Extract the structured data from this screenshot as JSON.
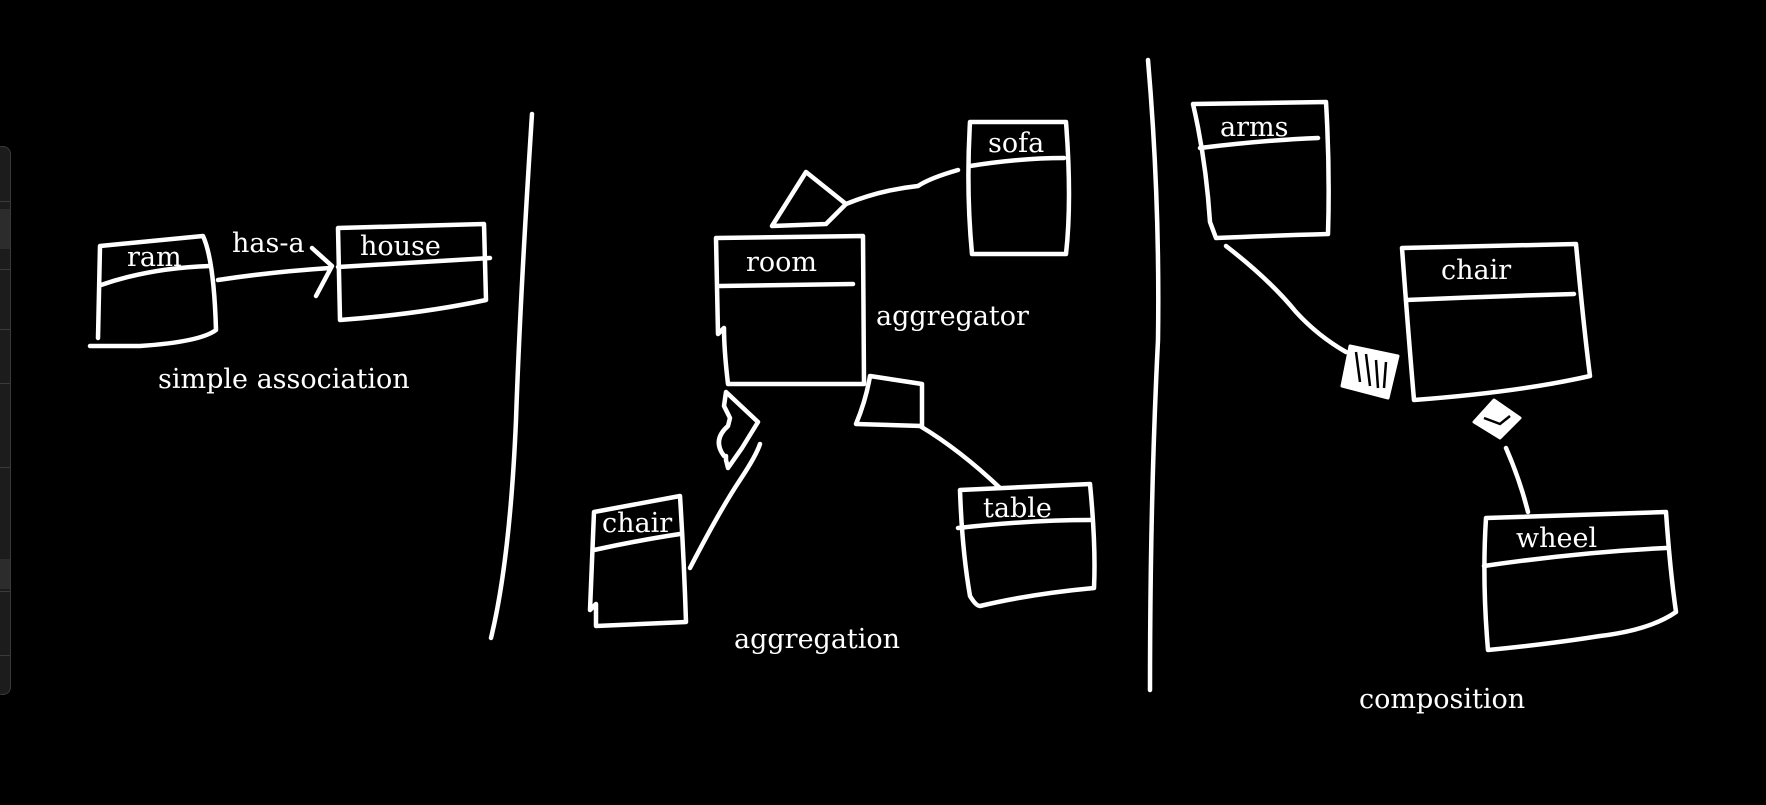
{
  "canvas": {
    "background": "#000000",
    "ink_color": "#ffffff"
  },
  "sections": {
    "simple_association": {
      "caption": "simple association",
      "class_ram": "ram",
      "class_house": "house",
      "relation_label": "has-a"
    },
    "aggregation": {
      "caption": "aggregation",
      "class_room": "room",
      "class_sofa": "sofa",
      "class_chair": "chair",
      "class_table": "table",
      "room_note": "aggregator"
    },
    "composition": {
      "caption": "composition",
      "class_arms": "arms",
      "class_chair": "chair",
      "class_wheel": "wheel"
    }
  },
  "side_panel": {
    "background": "#1c1c1c",
    "icon": "collapsed-toolbar-icon"
  }
}
